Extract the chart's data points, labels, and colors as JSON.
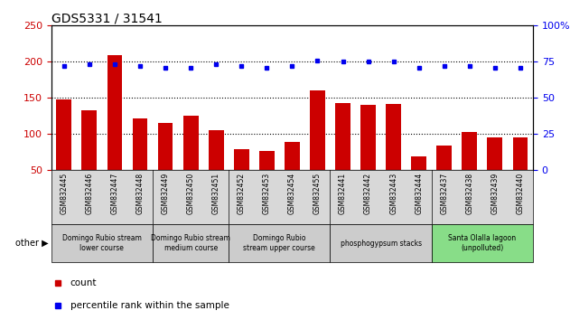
{
  "title": "GDS5331 / 31541",
  "samples": [
    "GSM832445",
    "GSM832446",
    "GSM832447",
    "GSM832448",
    "GSM832449",
    "GSM832450",
    "GSM832451",
    "GSM832452",
    "GSM832453",
    "GSM832454",
    "GSM832455",
    "GSM832441",
    "GSM832442",
    "GSM832443",
    "GSM832444",
    "GSM832437",
    "GSM832438",
    "GSM832439",
    "GSM832440"
  ],
  "counts": [
    148,
    133,
    209,
    121,
    115,
    125,
    105,
    79,
    76,
    88,
    160,
    142,
    140,
    141,
    68,
    83,
    102,
    95,
    95
  ],
  "percentiles": [
    72,
    73,
    73,
    72,
    71,
    71,
    73,
    72,
    71,
    72,
    76,
    75,
    75,
    75,
    71,
    72,
    72,
    71,
    71
  ],
  "bar_color": "#cc0000",
  "dot_color": "#0000ee",
  "ylim_left": [
    50,
    250
  ],
  "ylim_right": [
    0,
    100
  ],
  "yticks_left": [
    50,
    100,
    150,
    200,
    250
  ],
  "yticks_right": [
    0,
    25,
    50,
    75,
    100
  ],
  "groups": [
    {
      "label": "Domingo Rubio stream\nlower course",
      "start": 0,
      "end": 4,
      "color": "#cccccc"
    },
    {
      "label": "Domingo Rubio stream\nmedium course",
      "start": 4,
      "end": 7,
      "color": "#cccccc"
    },
    {
      "label": "Domingo Rubio\nstream upper course",
      "start": 7,
      "end": 11,
      "color": "#cccccc"
    },
    {
      "label": "phosphogypsum stacks",
      "start": 11,
      "end": 15,
      "color": "#cccccc"
    },
    {
      "label": "Santa Olalla lagoon\n(unpolluted)",
      "start": 15,
      "end": 19,
      "color": "#88dd88"
    }
  ],
  "other_label": "other",
  "legend_count_label": "count",
  "legend_pct_label": "percentile rank within the sample",
  "title_fontsize": 10,
  "tick_fontsize": 8,
  "bar_width": 0.6
}
